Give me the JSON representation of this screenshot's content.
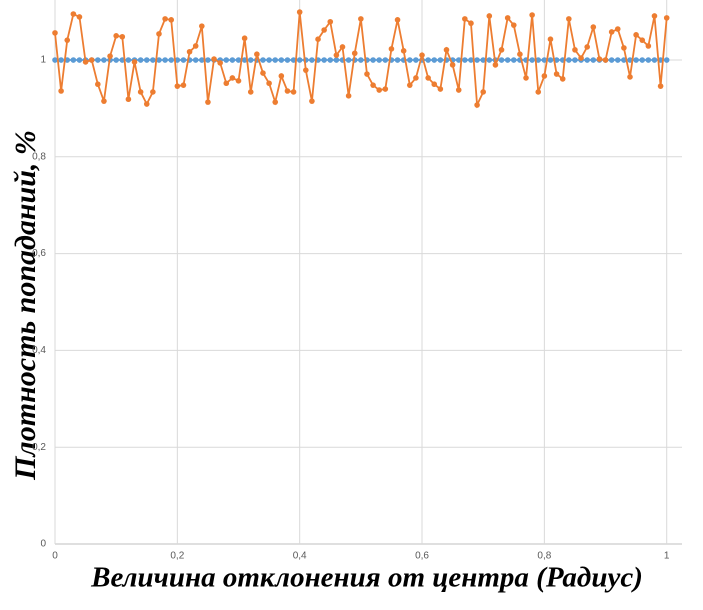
{
  "chart_data": {
    "type": "line",
    "x_label": "Величина отклонения от центра (Радиус)",
    "y_label": "Плотность попаданий, %",
    "x": [
      0,
      0.01,
      0.02,
      0.03,
      0.04,
      0.05,
      0.06,
      0.07,
      0.08,
      0.09,
      0.1,
      0.11,
      0.12,
      0.13,
      0.14,
      0.15,
      0.16,
      0.17,
      0.18,
      0.19,
      0.2,
      0.21,
      0.22,
      0.23,
      0.24,
      0.25,
      0.26,
      0.27,
      0.28,
      0.29,
      0.3,
      0.31,
      0.32,
      0.33,
      0.34,
      0.35,
      0.36,
      0.37,
      0.38,
      0.39,
      0.4,
      0.41,
      0.42,
      0.43,
      0.44,
      0.45,
      0.46,
      0.47,
      0.48,
      0.49,
      0.5,
      0.51,
      0.52,
      0.53,
      0.54,
      0.55,
      0.56,
      0.57,
      0.58,
      0.59,
      0.6,
      0.61,
      0.62,
      0.63,
      0.64,
      0.65,
      0.66,
      0.67,
      0.68,
      0.69,
      0.7,
      0.71,
      0.72,
      0.73,
      0.74,
      0.75,
      0.76,
      0.77,
      0.78,
      0.79,
      0.8,
      0.81,
      0.82,
      0.83,
      0.84,
      0.85,
      0.86,
      0.87,
      0.88,
      0.89,
      0.9,
      0.91,
      0.92,
      0.93,
      0.94,
      0.95,
      0.96,
      0.97,
      0.98,
      0.99,
      1
    ],
    "series": [
      {
        "color": "#5b9bd5",
        "values": [
          1,
          1,
          1,
          1,
          1,
          1,
          1,
          1,
          1,
          1,
          1,
          1,
          1,
          1,
          1,
          1,
          1,
          1,
          1,
          1,
          1,
          1,
          1,
          1,
          1,
          1,
          1,
          1,
          1,
          1,
          1,
          1,
          1,
          1,
          1,
          1,
          1,
          1,
          1,
          1,
          1,
          1,
          1,
          1,
          1,
          1,
          1,
          1,
          1,
          1,
          1,
          1,
          1,
          1,
          1,
          1,
          1,
          1,
          1,
          1,
          1,
          1,
          1,
          1,
          1,
          1,
          1,
          1,
          1,
          1,
          1,
          1,
          1,
          1,
          1,
          1,
          1,
          1,
          1,
          1,
          1,
          1,
          1,
          1,
          1,
          1,
          1,
          1,
          1,
          1,
          1,
          1,
          1,
          1,
          1,
          1,
          1,
          1,
          1,
          1,
          1
        ]
      },
      {
        "color": "#ed7d31",
        "values": [
          1.056,
          0.936,
          1.041,
          1.095,
          1.089,
          0.996,
          1.0,
          0.95,
          0.915,
          1.008,
          1.05,
          1.048,
          0.919,
          0.996,
          0.934,
          0.909,
          0.934,
          1.054,
          1.085,
          1.083,
          0.946,
          0.948,
          1.017,
          1.029,
          1.07,
          0.913,
          1.002,
          0.994,
          0.952,
          0.963,
          0.957,
          1.045,
          0.934,
          1.012,
          0.973,
          0.952,
          0.913,
          0.967,
          0.936,
          0.934,
          1.099,
          0.979,
          0.915,
          1.043,
          1.062,
          1.079,
          1.01,
          1.027,
          0.926,
          1.014,
          1.085,
          0.971,
          0.948,
          0.938,
          0.94,
          1.023,
          1.083,
          1.019,
          0.948,
          0.963,
          1.01,
          0.963,
          0.95,
          0.94,
          1.021,
          0.99,
          0.938,
          1.085,
          1.076,
          0.907,
          0.934,
          1.091,
          0.99,
          1.021,
          1.087,
          1.072,
          1.012,
          0.963,
          1.093,
          0.934,
          0.967,
          1.043,
          0.971,
          0.961,
          1.085,
          1.021,
          1.004,
          1.027,
          1.068,
          1.002,
          1.0,
          1.058,
          1.064,
          1.025,
          0.965,
          1.052,
          1.041,
          1.029,
          1.091,
          0.946,
          1.087
        ]
      }
    ],
    "xlim": [
      0,
      1.025
    ],
    "ylim": [
      0,
      1.124
    ],
    "xticks": [
      0,
      {
        "value": 0.2,
        "label": "0,2"
      },
      {
        "value": 0.4,
        "label": "0,4"
      },
      {
        "value": 0.6,
        "label": "0,6"
      },
      {
        "value": 0.8,
        "label": "0,8"
      },
      1
    ],
    "yticks": [
      0,
      {
        "value": 0.2,
        "label": "0,2"
      },
      {
        "value": 0.4,
        "label": "0,4"
      },
      {
        "value": 0.6,
        "label": "0,6"
      },
      {
        "value": 0.8,
        "label": "0,8"
      },
      1
    ],
    "grid": true
  }
}
